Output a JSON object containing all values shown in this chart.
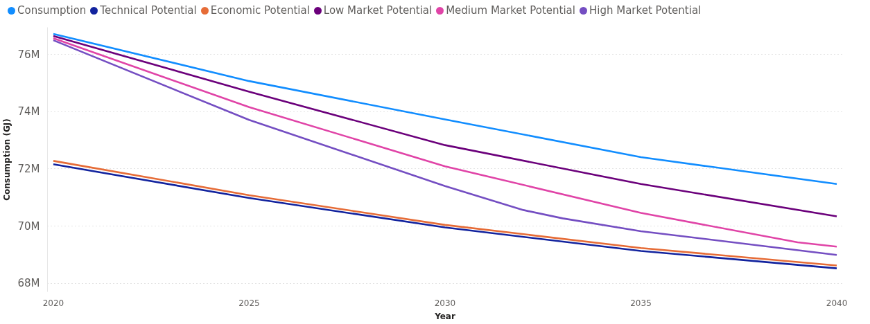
{
  "chart_data": {
    "type": "line",
    "xlabel": "Year",
    "ylabel": "Consumption (GJ)",
    "x": [
      2020,
      2025,
      2030,
      2035,
      2040
    ],
    "series": [
      {
        "name": "Consumption",
        "color": "#118dff",
        "values": [
          76720000,
          75070000,
          73730000,
          72410000,
          71470000
        ]
      },
      {
        "name": "Technical Potential",
        "color": "#12239e",
        "values": [
          72160000,
          70980000,
          69950000,
          69130000,
          68520000
        ]
      },
      {
        "name": "Economic Potential",
        "color": "#e66c37",
        "values": [
          72280000,
          71080000,
          70040000,
          69230000,
          68620000
        ]
      },
      {
        "name": "Low Market Potential",
        "color": "#6b007b",
        "values": [
          76650000,
          74700000,
          72830000,
          71470000,
          70340000
        ]
      },
      {
        "name": "Medium Market Potential",
        "color": "#e044a7",
        "x": [
          2020,
          2025,
          2030,
          2035,
          2039,
          2040
        ],
        "values": [
          76570000,
          74160000,
          72090000,
          70460000,
          69430000,
          69280000
        ]
      },
      {
        "name": "High Market Potential",
        "color": "#744ec2",
        "x": [
          2020,
          2025,
          2030,
          2032,
          2033,
          2035,
          2040
        ],
        "values": [
          76500000,
          73710000,
          71400000,
          70560000,
          70270000,
          69820000,
          68990000
        ]
      }
    ],
    "xlim": [
      2019.85,
      2040.15
    ],
    "xticks": [
      2020,
      2025,
      2030,
      2035,
      2040
    ],
    "ylim": [
      67700000,
      76950000
    ],
    "yticks": [
      {
        "value": 68000000,
        "label": "68M"
      },
      {
        "value": 70000000,
        "label": "70M"
      },
      {
        "value": 72000000,
        "label": "72M"
      },
      {
        "value": 74000000,
        "label": "74M"
      },
      {
        "value": 76000000,
        "label": "76M"
      }
    ],
    "grid": "y",
    "legend": "top left",
    "line_style": "solid"
  }
}
